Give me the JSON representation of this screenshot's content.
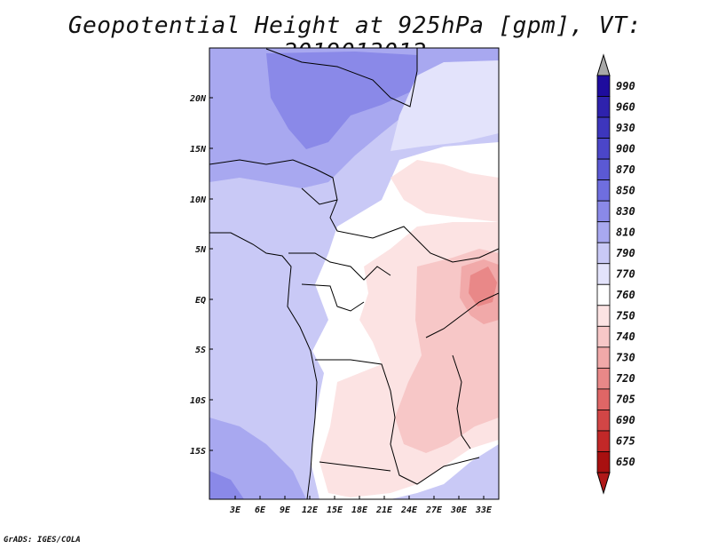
{
  "title": "Geopotential Height at 925hPa [gpm], VT: 2019013012",
  "footer": "GrADS: IGES/COLA",
  "map": {
    "lat_labels": [
      "20N",
      "15N",
      "10N",
      "5N",
      "EQ",
      "5S",
      "10S",
      "15S"
    ],
    "lon_labels": [
      "3E",
      "6E",
      "9E",
      "12E",
      "15E",
      "18E",
      "21E",
      "24E",
      "27E",
      "30E",
      "33E"
    ]
  },
  "colorbar": {
    "levels": [
      "990",
      "960",
      "930",
      "900",
      "870",
      "850",
      "830",
      "810",
      "790",
      "770",
      "760",
      "750",
      "740",
      "730",
      "720",
      "705",
      "690",
      "675",
      "650"
    ],
    "colors": [
      "#1e0c9e",
      "#2e22ad",
      "#3d36bd",
      "#4b46c9",
      "#5b59d4",
      "#6f6edf",
      "#8a89e8",
      "#a8a8f0",
      "#c9c9f6",
      "#e3e3fb",
      "#ffffff",
      "#fce3e3",
      "#f7c7c7",
      "#f1a9a9",
      "#e98888",
      "#df6666",
      "#d24646",
      "#c22828",
      "#a81010"
    ],
    "top_arrow_color": "#a8a8a8",
    "bottom_arrow_color": "#b01818"
  }
}
